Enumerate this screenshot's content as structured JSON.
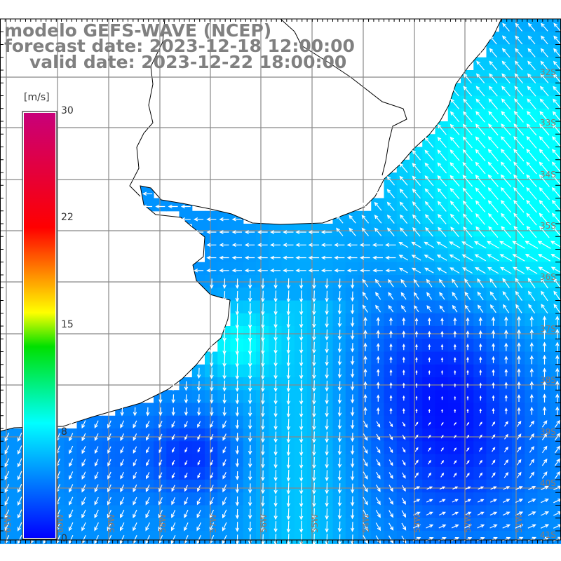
{
  "title": {
    "line1": "modelo GEFS-WAVE (NCEP)",
    "line2": "forecast date: 2023-12-18 12:00:00",
    "line3": "valid date: 2023-12-22 18:00:00"
  },
  "colorbar": {
    "unit": "[m/s]",
    "ticks": [
      "30",
      "22",
      "15",
      "8",
      "0"
    ],
    "colors": [
      "#c8007a",
      "#ff0000",
      "#ffff00",
      "#00e000",
      "#00ffff",
      "#0000ff"
    ]
  },
  "lat_labels": [
    "32S",
    "33S",
    "34S",
    "35S",
    "36S",
    "37S",
    "38S",
    "39S",
    "40S",
    "41S"
  ],
  "lon_labels": [
    "61W",
    "60W",
    "59W",
    "58W",
    "57W",
    "56W",
    "55W",
    "54W",
    "53W",
    "52W",
    "51W"
  ]
}
